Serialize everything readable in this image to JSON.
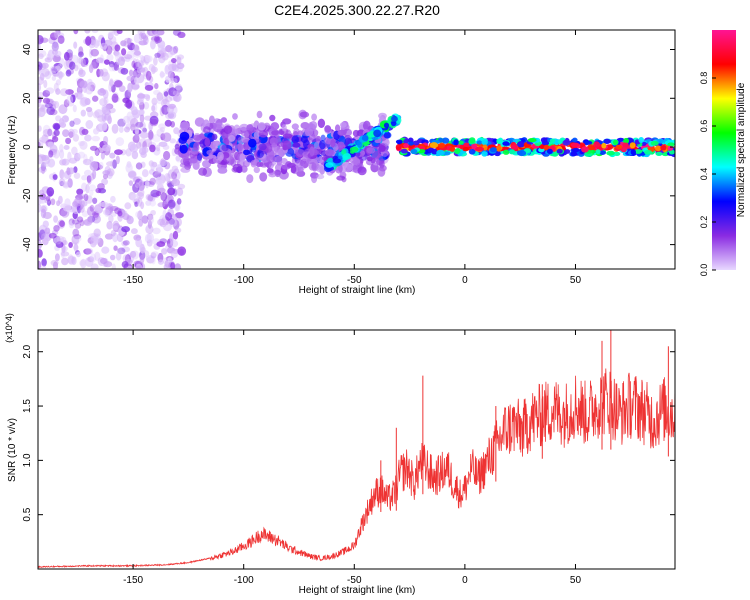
{
  "title": "C2E4.2025.300.22.27.R20",
  "chart_data": [
    {
      "type": "heatmap",
      "xlabel": "Height of straight line (km)",
      "ylabel": "Frequency (Hz)",
      "xlim": [
        -193,
        95
      ],
      "ylim": [
        -50,
        48
      ],
      "xticks": [
        -150,
        -100,
        -50,
        0,
        50
      ],
      "yticks": [
        -40,
        -20,
        0,
        20,
        40
      ],
      "colorbar": {
        "label": "Normalized spectral amplitude",
        "range": [
          0,
          1
        ],
        "ticks": [
          0.0,
          0.2,
          0.4,
          0.6,
          0.8
        ],
        "tick_labels": [
          "0.0",
          "0.2",
          "0.4",
          "0.6",
          "0.8"
        ],
        "colors": [
          "#e8d8ff",
          "#8a2be2",
          "#0000ff",
          "#00ffff",
          "#00ff00",
          "#ffff00",
          "#ff0000",
          "#ff1493"
        ]
      },
      "regions": [
        {
          "name": "scattered low-amplitude noise",
          "x": [
            -193,
            -128
          ],
          "freq": [
            -50,
            48
          ],
          "amplitude": 0.05
        },
        {
          "name": "broad diffuse band",
          "x": [
            -128,
            -35
          ],
          "freq_center": 0,
          "freq_spread": 12,
          "amplitude": 0.25
        },
        {
          "name": "rising branch",
          "x": [
            -62,
            -30
          ],
          "freq": [
            -8,
            12
          ],
          "amplitude": 0.45
        },
        {
          "name": "narrow high-amplitude line",
          "x": [
            -30,
            95
          ],
          "freq_center": 0,
          "freq_spread": 3,
          "amplitude": 0.9
        }
      ]
    },
    {
      "type": "line",
      "xlabel": "Height of straight line (km)",
      "ylabel": "SNR (10 * v/v)",
      "y_multiplier": "(x10^4)",
      "xlim": [
        -193,
        95
      ],
      "ylim": [
        0,
        2.2
      ],
      "xticks": [
        -150,
        -100,
        -50,
        0,
        50
      ],
      "yticks": [
        0.5,
        1.0,
        1.5,
        2.0
      ],
      "ytick_labels": [
        "0.5",
        "1.0",
        "1.5",
        "2.0"
      ],
      "color": "#ee3333",
      "series": [
        {
          "name": "SNR",
          "x": [
            -193,
            -170,
            -150,
            -135,
            -125,
            -115,
            -105,
            -97,
            -92,
            -88,
            -84,
            -80,
            -75,
            -70,
            -65,
            -60,
            -55,
            -50,
            -47,
            -44,
            -41,
            -38,
            -35,
            -32,
            -29,
            -26,
            -23,
            -20,
            -17,
            -14,
            -11,
            -8,
            -5,
            -2,
            0,
            3,
            6,
            10,
            14,
            18,
            22,
            26,
            30,
            35,
            40,
            45,
            50,
            55,
            60,
            65,
            70,
            75,
            80,
            85,
            90,
            95
          ],
          "y": [
            0.02,
            0.03,
            0.03,
            0.04,
            0.06,
            0.1,
            0.16,
            0.25,
            0.33,
            0.3,
            0.26,
            0.2,
            0.16,
            0.12,
            0.1,
            0.12,
            0.16,
            0.22,
            0.4,
            0.55,
            0.7,
            0.75,
            0.65,
            0.7,
            0.9,
            0.95,
            0.8,
            1.0,
            0.95,
            0.85,
            0.9,
            0.95,
            0.8,
            0.7,
            0.75,
            0.95,
            0.85,
            1.0,
            1.15,
            1.3,
            1.35,
            1.3,
            1.4,
            1.45,
            1.5,
            1.45,
            1.55,
            1.45,
            1.55,
            1.6,
            1.45,
            1.55,
            1.5,
            1.4,
            1.5,
            1.45
          ]
        }
      ],
      "spikes": [
        {
          "x": -38,
          "y": 1.0
        },
        {
          "x": -31,
          "y": 1.3
        },
        {
          "x": -19,
          "y": 1.78
        },
        {
          "x": 14,
          "y": 1.5
        },
        {
          "x": 35,
          "y": 1.7
        },
        {
          "x": 62,
          "y": 2.1
        },
        {
          "x": 66,
          "y": 2.2
        },
        {
          "x": 92,
          "y": 2.05
        }
      ]
    }
  ]
}
